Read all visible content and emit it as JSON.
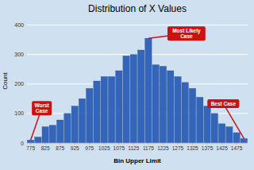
{
  "chart_data": {
    "type": "bar",
    "title": "Distribution of X Values",
    "x_label": "Bin Upper Limit",
    "y_label": "Count",
    "categories": [
      "775",
      null,
      "825",
      null,
      "875",
      null,
      "925",
      null,
      "975",
      null,
      "1025",
      null,
      "1075",
      null,
      "1125",
      null,
      "1175",
      null,
      "1225",
      null,
      "1275",
      null,
      "1325",
      null,
      "1375",
      null,
      "1425",
      null,
      "1475",
      null
    ],
    "values": [
      10,
      20,
      55,
      60,
      78,
      100,
      125,
      150,
      185,
      210,
      225,
      225,
      245,
      295,
      300,
      315,
      355,
      265,
      260,
      245,
      225,
      205,
      185,
      155,
      125,
      100,
      65,
      55,
      35,
      15
    ],
    "color": "#3366BB",
    "ylim": [
      0,
      420
    ],
    "yticks": [
      0,
      100,
      200,
      300,
      400
    ],
    "grid": true,
    "annotations": [
      {
        "text": "Worst\nCase",
        "color": "#CC1111"
      },
      {
        "text": "Most Likely\nCase",
        "color": "#CC1111"
      },
      {
        "text": "Best Case",
        "color": "#CC1111"
      }
    ]
  }
}
